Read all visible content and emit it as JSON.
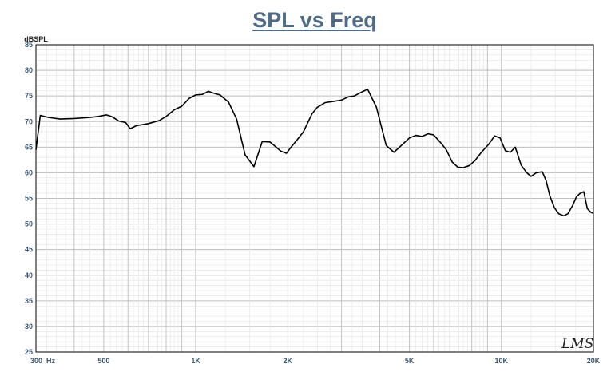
{
  "chart_data": {
    "type": "line",
    "title": "SPL vs Freq",
    "ylabel": "dBSPL",
    "xlabel": "",
    "x_scale": "log",
    "xlim": [
      300,
      20000
    ],
    "ylim": [
      25,
      85
    ],
    "y_ticks": [
      25,
      30,
      35,
      40,
      45,
      50,
      55,
      60,
      65,
      70,
      75,
      80,
      85
    ],
    "x_tick_labels": [
      {
        "value": 300,
        "label": "300  Hz"
      },
      {
        "value": 500,
        "label": "500"
      },
      {
        "value": 1000,
        "label": "1K"
      },
      {
        "value": 2000,
        "label": "2K"
      },
      {
        "value": 5000,
        "label": "5K"
      },
      {
        "value": 10000,
        "label": "10K"
      },
      {
        "value": 20000,
        "label": "20K"
      }
    ],
    "grid": true,
    "colors": {
      "line": "#000000",
      "grid": "#bdbdbd",
      "axis_text": "#3b5670",
      "title": "#4f6b85"
    },
    "watermark": "LMS",
    "series": [
      {
        "x": [
          300,
          310,
          330,
          360,
          400,
          450,
          480,
          510,
          530,
          560,
          590,
          610,
          640,
          700,
          760,
          800,
          850,
          900,
          950,
          1000,
          1050,
          1100,
          1150,
          1200,
          1280,
          1360,
          1450,
          1550,
          1650,
          1750,
          1900,
          1980,
          2050,
          2150,
          2250,
          2400,
          2500,
          2650,
          2800,
          3000,
          3150,
          3300,
          3500,
          3650,
          3900,
          4200,
          4450,
          4700,
          5000,
          5250,
          5500,
          5750,
          6000,
          6300,
          6600,
          6900,
          7200,
          7500,
          7850,
          8200,
          8600,
          9100,
          9500,
          9900,
          10300,
          10700,
          11100,
          11600,
          12100,
          12500,
          13000,
          13600,
          14000,
          14400,
          14900,
          15400,
          16000,
          16500,
          17100,
          17600,
          18100,
          18600,
          19100,
          19600,
          20000
        ],
        "y": [
          64.5,
          71.2,
          70.8,
          70.5,
          70.6,
          70.8,
          71.0,
          71.3,
          71.0,
          70.1,
          69.8,
          68.6,
          69.2,
          69.6,
          70.2,
          71.0,
          72.3,
          73.0,
          74.5,
          75.2,
          75.3,
          75.9,
          75.5,
          75.2,
          73.8,
          70.5,
          63.5,
          61.2,
          66.1,
          66.0,
          64.2,
          63.8,
          65.0,
          66.5,
          68.0,
          71.5,
          72.8,
          73.7,
          73.9,
          74.2,
          74.8,
          75.0,
          75.8,
          76.3,
          72.8,
          65.3,
          64.0,
          65.3,
          66.8,
          67.3,
          67.1,
          67.6,
          67.4,
          66.0,
          64.5,
          62.1,
          61.1,
          61.0,
          61.4,
          62.4,
          64.0,
          65.6,
          67.2,
          66.8,
          64.3,
          64.0,
          65.0,
          61.5,
          60.0,
          59.3,
          60.0,
          60.2,
          58.5,
          55.5,
          53.2,
          52.0,
          51.6,
          52.0,
          53.6,
          55.3,
          56.0,
          56.3,
          53.0,
          52.3,
          52.1
        ]
      }
    ]
  }
}
